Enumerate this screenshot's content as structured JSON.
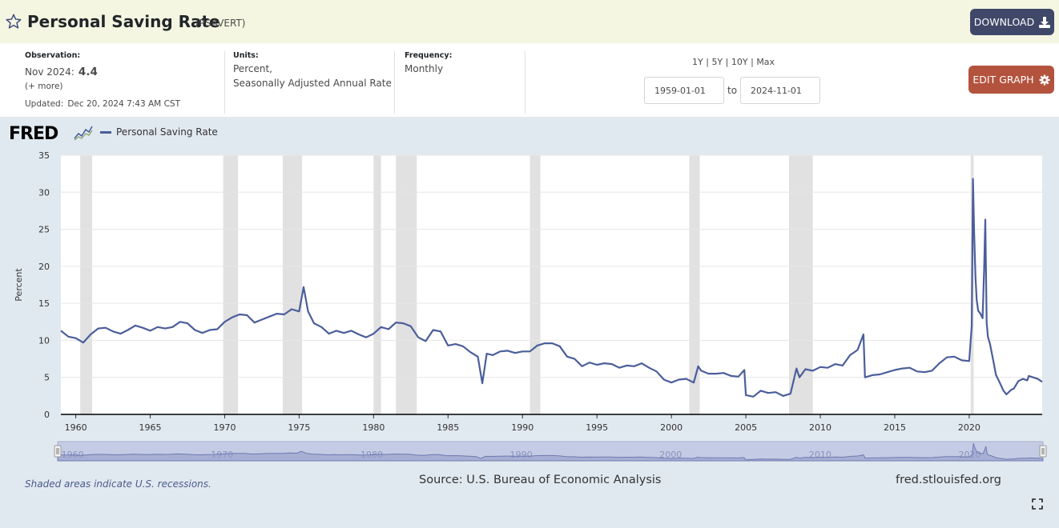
{
  "header": {
    "title": "Personal Saving Rate",
    "series_id": "(PSAVERT)",
    "download_label": "DOWNLOAD",
    "star_icon": "star-outline-icon",
    "download_icon": "download-icon"
  },
  "meta": {
    "observation_label": "Observation:",
    "observation_period": "Nov 2024:",
    "observation_value": "4.4",
    "more_link": "(+ more)",
    "updated_label": "Updated:",
    "updated_value": "Dec 20, 2024 7:43 AM CST",
    "units_label": "Units:",
    "units_line1": "Percent,",
    "units_line2": "Seasonally Adjusted Annual Rate",
    "frequency_label": "Frequency:",
    "frequency_value": "Monthly",
    "ranges": [
      "1Y",
      "5Y",
      "10Y",
      "Max"
    ],
    "range_sep": "|",
    "start_date": "1959-01-01",
    "to_label": "to",
    "end_date": "2024-11-01",
    "edit_label": "EDIT GRAPH",
    "edit_icon": "gear-icon"
  },
  "graph": {
    "logo_text": "FRED",
    "legend_label": "Personal Saving Rate",
    "series_color": "#4b5e9a",
    "recession_color": "#e1e1e1",
    "recession_note": "Shaded areas indicate U.S. recessions.",
    "source": "Source: U.S. Bureau of Economic Analysis",
    "url": "fred.stlouisfed.org",
    "fullscreen_icon": "fullscreen-icon",
    "navigator_labels": [
      "1960",
      "1970",
      "1980",
      "1990",
      "2000",
      "2010",
      "2020"
    ]
  },
  "chart_data": {
    "type": "line",
    "title": "",
    "xlabel": "",
    "ylabel": "Percent",
    "ylim": [
      0,
      35
    ],
    "xlim": [
      1959.0,
      2024.9
    ],
    "yticks": [
      0,
      5,
      10,
      15,
      20,
      25,
      30,
      35
    ],
    "xticks": [
      1960,
      1965,
      1970,
      1975,
      1980,
      1985,
      1990,
      1995,
      2000,
      2005,
      2010,
      2015,
      2020
    ],
    "grid": true,
    "legend": "top-left",
    "recessions": [
      [
        1960.3,
        1961.1
      ],
      [
        1969.9,
        1970.9
      ],
      [
        1973.9,
        1975.2
      ],
      [
        1980.0,
        1980.5
      ],
      [
        1981.5,
        1982.9
      ],
      [
        1990.5,
        1991.2
      ],
      [
        2001.2,
        2001.9
      ],
      [
        2007.9,
        2009.5
      ],
      [
        2020.1,
        2020.3
      ]
    ],
    "series": [
      {
        "name": "Personal Saving Rate",
        "x": [
          1959.0,
          1959.5,
          1960.0,
          1960.5,
          1961.0,
          1961.5,
          1962.0,
          1962.5,
          1963.0,
          1963.5,
          1964.0,
          1964.5,
          1965.0,
          1965.5,
          1966.0,
          1966.5,
          1967.0,
          1967.5,
          1968.0,
          1968.5,
          1969.0,
          1969.5,
          1970.0,
          1970.5,
          1971.0,
          1971.5,
          1972.0,
          1972.5,
          1973.0,
          1973.5,
          1974.0,
          1974.5,
          1975.0,
          1975.3,
          1975.6,
          1976.0,
          1976.5,
          1977.0,
          1977.5,
          1978.0,
          1978.5,
          1979.0,
          1979.5,
          1980.0,
          1980.5,
          1981.0,
          1981.5,
          1982.0,
          1982.5,
          1983.0,
          1983.5,
          1984.0,
          1984.5,
          1985.0,
          1985.5,
          1986.0,
          1986.5,
          1987.0,
          1987.3,
          1987.6,
          1988.0,
          1988.5,
          1989.0,
          1989.5,
          1990.0,
          1990.5,
          1991.0,
          1991.5,
          1992.0,
          1992.5,
          1993.0,
          1993.5,
          1994.0,
          1994.5,
          1995.0,
          1995.5,
          1996.0,
          1996.5,
          1997.0,
          1997.5,
          1998.0,
          1998.5,
          1999.0,
          1999.5,
          2000.0,
          2000.5,
          2001.0,
          2001.5,
          2001.8,
          2002.0,
          2002.5,
          2003.0,
          2003.5,
          2004.0,
          2004.5,
          2004.9,
          2005.0,
          2005.5,
          2006.0,
          2006.5,
          2007.0,
          2007.5,
          2008.0,
          2008.4,
          2008.6,
          2009.0,
          2009.5,
          2010.0,
          2010.5,
          2011.0,
          2011.5,
          2012.0,
          2012.5,
          2012.9,
          2013.0,
          2013.5,
          2014.0,
          2014.5,
          2015.0,
          2015.5,
          2016.0,
          2016.5,
          2017.0,
          2017.5,
          2018.0,
          2018.5,
          2019.0,
          2019.5,
          2020.0,
          2020.17,
          2020.25,
          2020.33,
          2020.42,
          2020.5,
          2020.6,
          2020.75,
          2020.9,
          2021.0,
          2021.08,
          2021.17,
          2021.25,
          2021.4,
          2021.6,
          2021.8,
          2022.0,
          2022.3,
          2022.5,
          2022.8,
          2023.0,
          2023.3,
          2023.6,
          2023.9,
          2024.0,
          2024.3,
          2024.6,
          2024.9
        ],
        "values": [
          11.3,
          10.5,
          10.3,
          9.7,
          10.8,
          11.6,
          11.7,
          11.2,
          10.9,
          11.4,
          12.0,
          11.7,
          11.3,
          11.8,
          11.6,
          11.8,
          12.5,
          12.3,
          11.4,
          11.0,
          11.4,
          11.5,
          12.5,
          13.1,
          13.5,
          13.4,
          12.4,
          12.8,
          13.2,
          13.6,
          13.5,
          14.2,
          13.9,
          17.2,
          13.9,
          12.3,
          11.8,
          10.9,
          11.3,
          11.0,
          11.3,
          10.8,
          10.4,
          10.9,
          11.8,
          11.5,
          12.4,
          12.3,
          11.9,
          10.4,
          9.9,
          11.4,
          11.2,
          9.3,
          9.5,
          9.2,
          8.4,
          7.8,
          4.2,
          8.2,
          8.0,
          8.5,
          8.6,
          8.3,
          8.5,
          8.5,
          9.3,
          9.6,
          9.6,
          9.2,
          7.8,
          7.5,
          6.5,
          7.0,
          6.7,
          6.9,
          6.8,
          6.3,
          6.6,
          6.5,
          6.9,
          6.3,
          5.8,
          4.7,
          4.3,
          4.7,
          4.8,
          4.3,
          6.5,
          5.9,
          5.5,
          5.5,
          5.6,
          5.2,
          5.1,
          6.0,
          2.6,
          2.4,
          3.2,
          2.9,
          3.0,
          2.5,
          2.8,
          6.2,
          5.0,
          6.1,
          5.9,
          6.4,
          6.3,
          6.8,
          6.6,
          8.0,
          8.7,
          10.8,
          5.0,
          5.3,
          5.4,
          5.7,
          6.0,
          6.2,
          6.3,
          5.8,
          5.7,
          5.9,
          6.9,
          7.7,
          7.8,
          7.3,
          7.2,
          12.0,
          31.8,
          24.8,
          18.7,
          15.5,
          14.0,
          13.6,
          13.0,
          19.5,
          26.3,
          12.4,
          10.5,
          9.5,
          7.4,
          5.3,
          4.5,
          3.2,
          2.7,
          3.3,
          3.5,
          4.5,
          4.8,
          4.6,
          5.2,
          5.0,
          4.8,
          4.4
        ]
      }
    ]
  }
}
